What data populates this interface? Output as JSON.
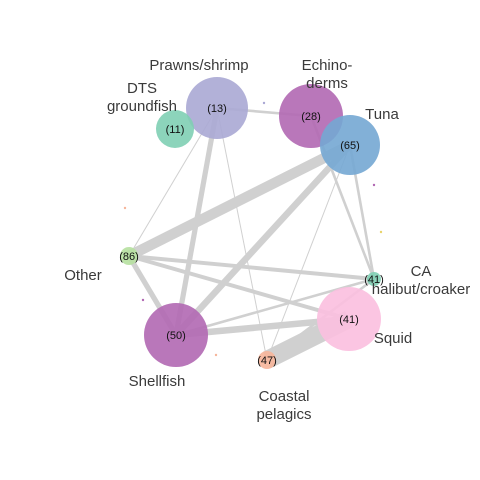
{
  "network": {
    "nodes": [
      {
        "id": "prawns",
        "name": "Prawns/shrimp",
        "label_lines": [
          "Prawns/shrimp"
        ],
        "count": "(13)",
        "color": "#aaa8d4"
      },
      {
        "id": "echinoderms",
        "name": "Echinoderms",
        "label_lines": [
          "Echino-",
          "derms"
        ],
        "count": "(28)",
        "color": "#b168b3"
      },
      {
        "id": "dts",
        "name": "DTS groundfish",
        "label_lines": [
          "DTS",
          "groundfish"
        ],
        "count": "(11)",
        "color": "#7fcfb4"
      },
      {
        "id": "tuna",
        "name": "Tuna",
        "label_lines": [
          "Tuna"
        ],
        "count": "(65)",
        "color": "#74a7d3"
      },
      {
        "id": "other",
        "name": "Other",
        "label_lines": [
          "Other"
        ],
        "count": "(86)",
        "color": "#b6e0a0"
      },
      {
        "id": "ca_halibut",
        "name": "CA halibut/croaker",
        "label_lines": [
          "CA",
          "halibut/croaker"
        ],
        "count": "(41)",
        "color": "#7fcfb4"
      },
      {
        "id": "shellfish",
        "name": "Shellfish",
        "label_lines": [
          "Shellfish"
        ],
        "count": "(50)",
        "color": "#b168b3"
      },
      {
        "id": "squid",
        "name": "Squid",
        "label_lines": [
          "Squid"
        ],
        "count": "(41)",
        "color": "#fbbfdf"
      },
      {
        "id": "coastal",
        "name": "Coastal pelagics",
        "label_lines": [
          "Coastal",
          "pelagics"
        ],
        "count": "(47)",
        "color": "#f6b59a"
      }
    ],
    "edges": [
      {
        "source": "prawns",
        "target": "other",
        "weight": 1
      },
      {
        "source": "prawns",
        "target": "shellfish",
        "weight": 4
      },
      {
        "source": "prawns",
        "target": "coastal",
        "weight": 1
      },
      {
        "source": "prawns",
        "target": "echinoderms",
        "weight": 2
      },
      {
        "source": "echinoderms",
        "target": "ca_halibut",
        "weight": 2
      },
      {
        "source": "tuna",
        "target": "other",
        "weight": 8
      },
      {
        "source": "tuna",
        "target": "shellfish",
        "weight": 5
      },
      {
        "source": "tuna",
        "target": "ca_halibut",
        "weight": 2
      },
      {
        "source": "tuna",
        "target": "coastal",
        "weight": 1
      },
      {
        "source": "other",
        "target": "ca_halibut",
        "weight": 3
      },
      {
        "source": "other",
        "target": "squid",
        "weight": 3
      },
      {
        "source": "other",
        "target": "shellfish",
        "weight": 4
      },
      {
        "source": "shellfish",
        "target": "squid",
        "weight": 5
      },
      {
        "source": "shellfish",
        "target": "ca_halibut",
        "weight": 2
      },
      {
        "source": "squid",
        "target": "coastal",
        "weight": 14
      },
      {
        "source": "ca_halibut",
        "target": "coastal",
        "weight": 2
      }
    ]
  }
}
